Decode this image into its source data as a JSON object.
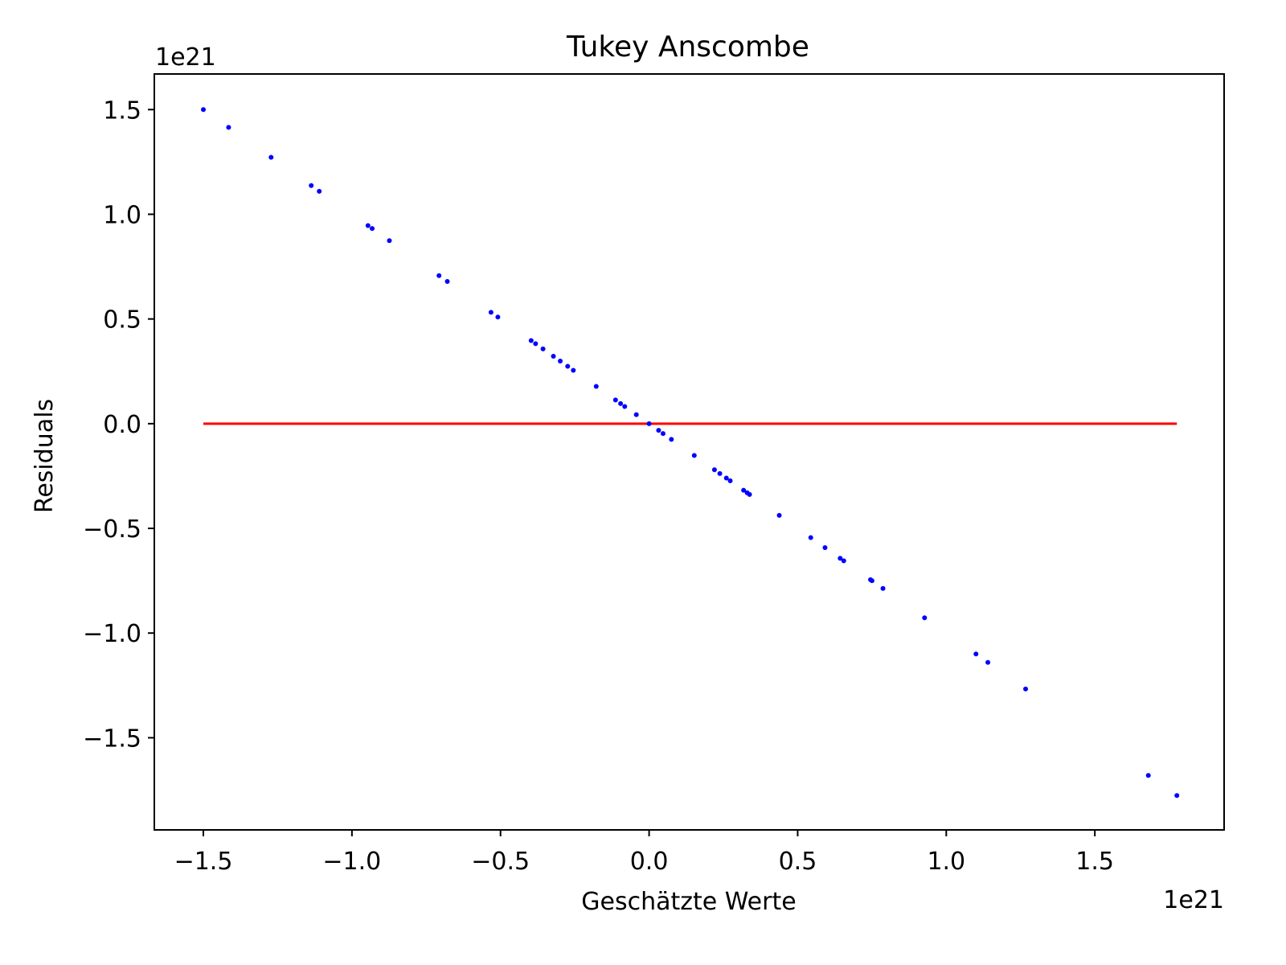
{
  "chart_data": {
    "type": "scatter",
    "title": "Tukey Anscombe",
    "xlabel": "Geschätzte Werte",
    "ylabel": "Residuals",
    "x_offset_label": "1e21",
    "y_offset_label": "1e21",
    "xlim": [
      -1.665,
      1.935
    ],
    "ylim": [
      -1.94,
      1.67
    ],
    "xticks": [
      -1.5,
      -1.0,
      -0.5,
      0.0,
      0.5,
      1.0,
      1.5
    ],
    "xtick_labels": [
      "−1.5",
      "−1.0",
      "−0.5",
      "0.0",
      "0.5",
      "1.0",
      "1.5"
    ],
    "yticks": [
      -1.5,
      -1.0,
      -0.5,
      0.0,
      0.5,
      1.0,
      1.5
    ],
    "ytick_labels": [
      "−1.5",
      "−1.0",
      "−0.5",
      "0.0",
      "0.5",
      "1.0",
      "1.5"
    ],
    "grid": false,
    "points": {
      "color": "#0000ff",
      "x": [
        -1.5,
        -1.415,
        -1.272,
        -1.137,
        -1.11,
        -0.946,
        -0.932,
        -0.874,
        -0.707,
        -0.679,
        -0.532,
        -0.509,
        -0.397,
        -0.382,
        -0.357,
        -0.322,
        -0.299,
        -0.274,
        -0.255,
        -0.178,
        -0.113,
        -0.096,
        -0.082,
        -0.043,
        0.0,
        0.032,
        0.047,
        0.075,
        0.152,
        0.22,
        0.238,
        0.26,
        0.273,
        0.318,
        0.33,
        0.338,
        0.438,
        0.544,
        0.592,
        0.643,
        0.655,
        0.745,
        0.75,
        0.787,
        0.927,
        1.1,
        1.14,
        1.267,
        1.68,
        1.776
      ],
      "y": [
        1.5,
        1.415,
        1.272,
        1.137,
        1.11,
        0.946,
        0.932,
        0.874,
        0.707,
        0.679,
        0.532,
        0.509,
        0.397,
        0.382,
        0.357,
        0.322,
        0.299,
        0.274,
        0.255,
        0.178,
        0.113,
        0.096,
        0.082,
        0.043,
        0.0,
        -0.032,
        -0.047,
        -0.075,
        -0.152,
        -0.22,
        -0.238,
        -0.26,
        -0.273,
        -0.318,
        -0.33,
        -0.338,
        -0.438,
        -0.544,
        -0.592,
        -0.643,
        -0.655,
        -0.745,
        -0.75,
        -0.787,
        -0.927,
        -1.1,
        -1.14,
        -1.267,
        -1.68,
        -1.776
      ]
    },
    "reference_line": {
      "color": "#ff0000",
      "x": [
        -1.5,
        1.776
      ],
      "y": [
        0.0,
        0.0
      ]
    }
  }
}
